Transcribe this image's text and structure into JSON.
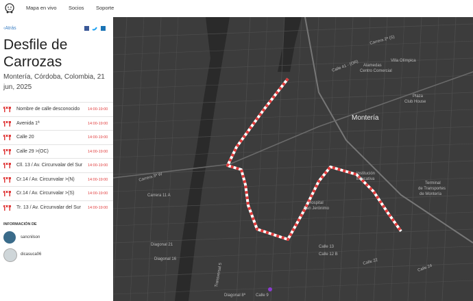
{
  "nav": {
    "items": [
      "Mapa en vivo",
      "Socios",
      "Soporte"
    ]
  },
  "panel": {
    "back": "Atrás",
    "title": "Desfile de Carrozas",
    "subtitle": "Montería, Córdoba, Colombia, 21 jun, 2025",
    "closures": [
      {
        "street": "Nombre de calle desconocido",
        "time": "14:00-19:00"
      },
      {
        "street": "Avenida 1ª",
        "time": "14:00-19:00"
      },
      {
        "street": "Calle 20",
        "time": "14:00-19:00"
      },
      {
        "street": "Calle 29 >(OC)",
        "time": "14:00-19:00"
      },
      {
        "street": "Cll. 13 / Av. Circunvalar del Sur",
        "time": "14:00-19:00"
      },
      {
        "street": "Cr.14 / Av. Circunvalar >(N)",
        "time": "14:00-19:00"
      },
      {
        "street": "Cr.14 / Av. Circunvalar >(S)",
        "time": "14:00-19:00"
      },
      {
        "street": "Tr. 13 / Av. Circunvalar del Sur",
        "time": "14:00-19:00"
      }
    ],
    "info_heading": "INFORMACIÓN DE",
    "users": [
      "sancnilson",
      "dicasuca06"
    ]
  },
  "map": {
    "labels": [
      "Montería",
      "Calle 41 - (OR)",
      "Carrera 2ª (S)",
      "Villa Olímpica",
      "Alamedas",
      "Centro Comercial",
      "Plaza",
      "Club House",
      "Carrera 3ª W",
      "Carrera 11 A",
      "Calle 13",
      "Diagonal 21",
      "Diagonal 8ª",
      "Calle 9",
      "Calle 22",
      "Calle 24",
      "Transversal 5",
      "Institución",
      "Educativa",
      "Terminal",
      "de Transportes",
      "de Montería",
      "Hospital",
      "San Jerónimo",
      "Calle 12 B",
      "Diagonal 16"
    ]
  }
}
